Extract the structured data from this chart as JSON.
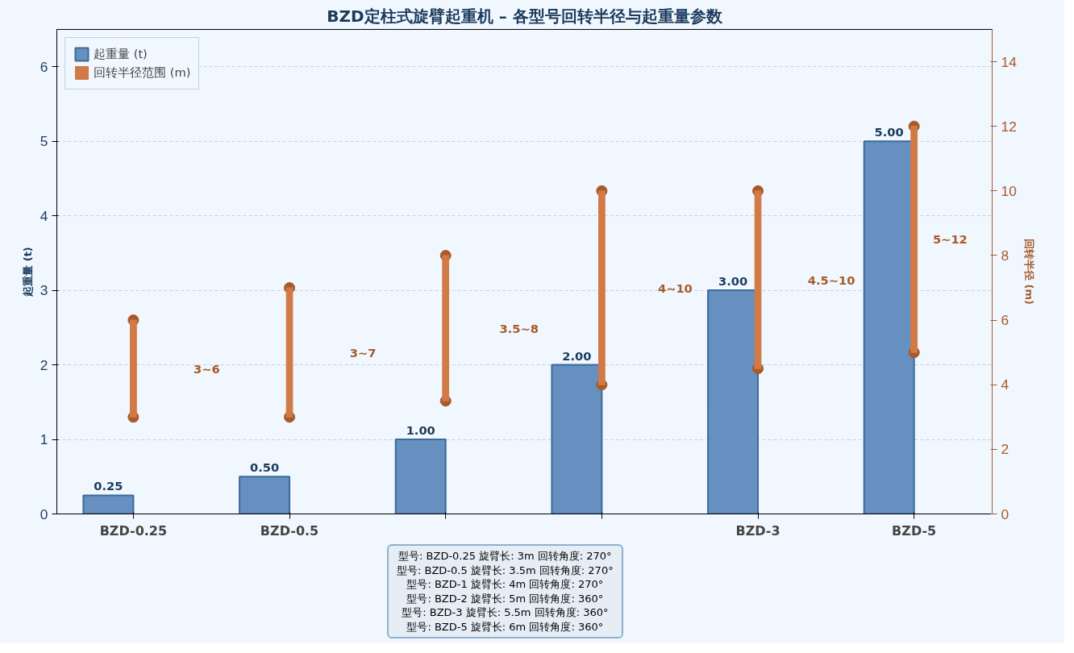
{
  "chart_data": {
    "type": "bar",
    "title": "BZD定柱式旋臂起重机 – 各型号回转半径与起重量参数",
    "categories": [
      "BZD-0.25",
      "BZD-0.5",
      null,
      null,
      "BZD-3",
      "BZD-5"
    ],
    "ylabel": "起重量 (t)",
    "y2label": "回转半径 (m)",
    "ylim": [
      0,
      6.5
    ],
    "yticks": [
      0,
      1,
      2,
      3,
      4,
      5,
      6
    ],
    "y2lim": [
      0,
      15
    ],
    "y2ticks": [
      0,
      2,
      4,
      6,
      8,
      10,
      12,
      14
    ],
    "grid": "y",
    "legend": "top left",
    "series": [
      {
        "name": "起重量 (t)",
        "color": "#6590c0",
        "values": [
          0.25,
          0.5,
          1,
          2,
          3,
          5
        ],
        "value_labels": [
          "0.25",
          "0.50",
          "1.00",
          "2.00",
          "3.00",
          "5.00"
        ]
      },
      {
        "name": "回转半径范围 (m)",
        "axis": "y2",
        "color": "#d27a45",
        "base": [
          3,
          3,
          3.5,
          4,
          4.5,
          5
        ],
        "values": [
          3,
          4,
          4.5,
          6,
          5.5,
          7
        ]
      },
      {
        "type": "scatter",
        "axis": "y2",
        "marker": "circle",
        "color": "#a95a2a",
        "values": [
          3,
          3,
          3.5,
          4,
          4.5,
          5
        ]
      },
      {
        "type": "scatter",
        "axis": "y2",
        "marker": "circle",
        "color": "#a95a2a",
        "values": [
          6,
          7,
          8,
          10,
          10,
          12
        ]
      }
    ],
    "annotations": [
      "型号: BZD-0.25    旋臂长: 3m    回转角度: 270°\n型号: BZD-0.5    旋臂长: 3.5m    回转角度: 270°\n型号: BZD-1    旋臂长: 4m    回转角度: 270°\n型号: BZD-2    旋臂长: 5m    回转角度: 360°\n型号: BZD-3    旋臂长: 5.5m    回转角度: 360°\n型号: BZD-5    旋臂长: 6m    回转角度: 360°",
      "3~6",
      "3~7",
      "3.5~8",
      "4~10",
      "4.5~10",
      "5~12"
    ]
  }
}
